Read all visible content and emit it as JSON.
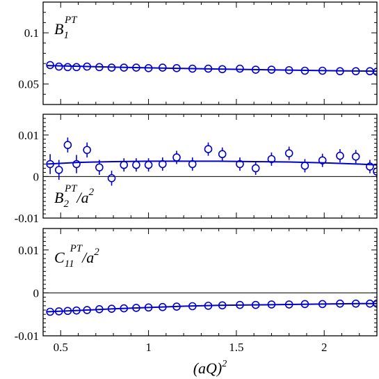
{
  "chart_data": {
    "type": "scatter",
    "xlabel_main": "(aQ)",
    "xlabel_sup": "2",
    "xlim": [
      0.4,
      2.3
    ],
    "x_ticks": [
      0.5,
      1,
      1.5,
      2
    ],
    "x_tick_labels": [
      "0.5",
      "1",
      "1.5",
      "2"
    ],
    "colors": {
      "data": "#0000cc",
      "frame": "#000000"
    },
    "panels": [
      {
        "label_main": "B",
        "label_sub": "1",
        "label_sup": "PT",
        "label_tail": "",
        "ylim": [
          0.03,
          0.13
        ],
        "y_ticks": [
          0.05,
          0.1
        ],
        "y_tick_labels": [
          "0.05",
          "0.1"
        ],
        "zero_line": false,
        "x": [
          0.44,
          0.49,
          0.54,
          0.59,
          0.65,
          0.72,
          0.79,
          0.86,
          0.93,
          1.0,
          1.08,
          1.16,
          1.25,
          1.34,
          1.42,
          1.52,
          1.61,
          1.7,
          1.8,
          1.89,
          1.99,
          2.09,
          2.18,
          2.26,
          2.3
        ],
        "y": [
          0.0685,
          0.067,
          0.0665,
          0.0665,
          0.067,
          0.0665,
          0.066,
          0.066,
          0.066,
          0.0655,
          0.066,
          0.0655,
          0.065,
          0.065,
          0.0645,
          0.065,
          0.064,
          0.064,
          0.0635,
          0.063,
          0.063,
          0.0625,
          0.0625,
          0.0625,
          0.062
        ],
        "yerr": [
          0.001,
          0.001,
          0.001,
          0.001,
          0.001,
          0.001,
          0.001,
          0.001,
          0.001,
          0.001,
          0.001,
          0.001,
          0.001,
          0.001,
          0.001,
          0.001,
          0.001,
          0.001,
          0.001,
          0.001,
          0.001,
          0.001,
          0.001,
          0.001,
          0.001
        ],
        "fit_x": [
          0.42,
          0.6,
          0.8,
          1.0,
          1.2,
          1.4,
          1.6,
          1.8,
          2.0,
          2.2,
          2.3
        ],
        "fit_y": [
          0.068,
          0.0673,
          0.0665,
          0.0658,
          0.0652,
          0.0646,
          0.0641,
          0.0636,
          0.0631,
          0.0627,
          0.0625
        ]
      },
      {
        "label_main": "B",
        "label_sub": "2",
        "label_sup": "PT",
        "label_tail": "/a",
        "label_tail_sup": "2",
        "ylim": [
          -0.01,
          0.015
        ],
        "y_ticks": [
          -0.01,
          0,
          0.01
        ],
        "y_tick_labels": [
          "-0.01",
          "0",
          "0.01"
        ],
        "zero_line": true,
        "x": [
          0.44,
          0.49,
          0.54,
          0.59,
          0.65,
          0.72,
          0.79,
          0.86,
          0.93,
          1.0,
          1.08,
          1.16,
          1.25,
          1.34,
          1.42,
          1.52,
          1.61,
          1.7,
          1.8,
          1.89,
          1.99,
          2.09,
          2.18,
          2.26,
          2.3
        ],
        "y": [
          0.003,
          0.0016,
          0.0076,
          0.003,
          0.0064,
          0.0022,
          -0.0004,
          0.0028,
          0.0028,
          0.0028,
          0.003,
          0.0046,
          0.003,
          0.0066,
          0.0054,
          0.003,
          0.002,
          0.0042,
          0.0056,
          0.0026,
          0.0039,
          0.005,
          0.0048,
          0.0024,
          0.0012
        ],
        "yerr": [
          0.0024,
          0.0024,
          0.0018,
          0.0022,
          0.0018,
          0.0018,
          0.0018,
          0.0016,
          0.0016,
          0.0016,
          0.0016,
          0.0016,
          0.0016,
          0.0016,
          0.0016,
          0.0016,
          0.0016,
          0.0016,
          0.0016,
          0.0016,
          0.0016,
          0.0016,
          0.0016,
          0.0016,
          0.0016
        ],
        "fit_x": [
          0.42,
          0.6,
          0.8,
          1.0,
          1.2,
          1.4,
          1.6,
          1.8,
          2.0,
          2.2,
          2.3
        ],
        "fit_y": [
          0.003,
          0.0034,
          0.0036,
          0.0037,
          0.0037,
          0.0037,
          0.0036,
          0.0035,
          0.0033,
          0.003,
          0.0028
        ]
      },
      {
        "label_main": "C",
        "label_sub": "11",
        "label_sup": "PT",
        "label_tail": "/a",
        "label_tail_sup": "2",
        "ylim": [
          -0.01,
          0.015
        ],
        "y_ticks": [
          -0.01,
          0,
          0.01
        ],
        "y_tick_labels": [
          "-0.01",
          "0",
          "0.01"
        ],
        "zero_line": true,
        "x": [
          0.44,
          0.49,
          0.54,
          0.59,
          0.65,
          0.72,
          0.79,
          0.86,
          0.93,
          1.0,
          1.08,
          1.16,
          1.25,
          1.34,
          1.42,
          1.52,
          1.61,
          1.7,
          1.8,
          1.89,
          1.99,
          2.09,
          2.18,
          2.26,
          2.3
        ],
        "y": [
          -0.0044,
          -0.0043,
          -0.0042,
          -0.0041,
          -0.004,
          -0.0038,
          -0.0037,
          -0.0036,
          -0.0035,
          -0.0034,
          -0.0033,
          -0.0032,
          -0.0031,
          -0.003,
          -0.0029,
          -0.0028,
          -0.0028,
          -0.0027,
          -0.0027,
          -0.0026,
          -0.0026,
          -0.0025,
          -0.0025,
          -0.0025,
          -0.0025
        ],
        "yerr": [
          0.0003,
          0.0003,
          0.0003,
          0.0003,
          0.0003,
          0.0003,
          0.0003,
          0.0003,
          0.0003,
          0.0003,
          0.0003,
          0.0003,
          0.0003,
          0.0003,
          0.0003,
          0.0003,
          0.0003,
          0.0003,
          0.0003,
          0.0003,
          0.0003,
          0.0003,
          0.0003,
          0.0003,
          0.0003
        ],
        "fit_x": [
          0.42,
          0.6,
          0.8,
          1.0,
          1.2,
          1.4,
          1.6,
          1.8,
          2.0,
          2.2,
          2.3
        ],
        "fit_y": [
          -0.0044,
          -0.0041,
          -0.0037,
          -0.0034,
          -0.0031,
          -0.0029,
          -0.0028,
          -0.0027,
          -0.0026,
          -0.0025,
          -0.0025
        ]
      }
    ]
  }
}
